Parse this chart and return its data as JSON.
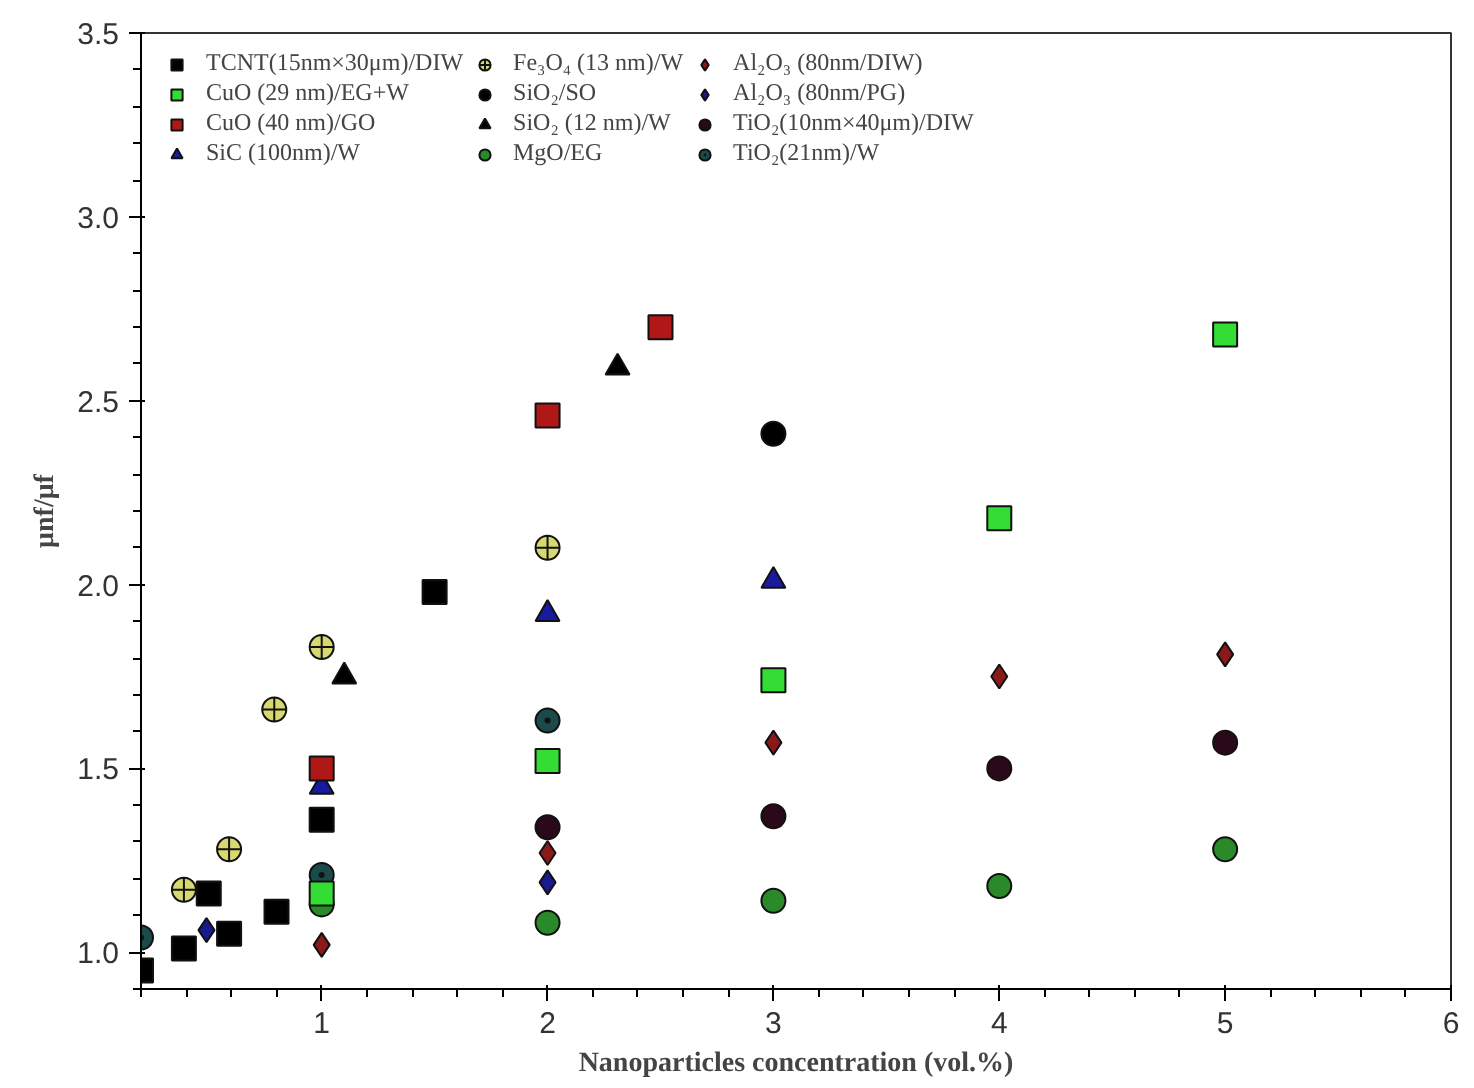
{
  "chart_data": {
    "type": "scatter",
    "xlabel": "Nanoparticles concentration (vol.%)",
    "ylabel": "μnf/μf",
    "xlim": [
      0.2,
      6
    ],
    "ylim": [
      0.9,
      3.5
    ],
    "xticks": [
      1,
      2,
      3,
      4,
      5,
      6
    ],
    "yticks": [
      {
        "value": 1,
        "label": "1.0"
      },
      {
        "value": 1.5,
        "label": "1.5"
      },
      {
        "value": 2,
        "label": "2.0"
      },
      {
        "value": 2.5,
        "label": "2.5"
      },
      {
        "value": 3,
        "label": "3.0"
      },
      {
        "value": 3.5,
        "label": "3.5"
      }
    ],
    "grid": false,
    "legend": "top left",
    "series": [
      {
        "name": "TCNT(15nm×30μm)/DIW",
        "color": "#000000",
        "marker": "square",
        "x": [
          0.2,
          0.39,
          0.5,
          0.59,
          0.8,
          1,
          1.5
        ],
        "values": [
          0.95,
          1.01,
          1.16,
          1.05,
          1.11,
          1.36,
          1.98
        ]
      },
      {
        "name": "CuO (29 nm)/EG+W",
        "color": "#33dd33",
        "marker": "square",
        "x": [
          1,
          2,
          3,
          4,
          5
        ],
        "values": [
          1.16,
          1.52,
          1.74,
          2.18,
          2.68
        ]
      },
      {
        "name": "CuO (40 nm)/GO",
        "color": "#b01818",
        "marker": "square",
        "x": [
          1,
          2,
          2.5
        ],
        "values": [
          1.5,
          2.46,
          2.7
        ]
      },
      {
        "name": "SiC (100nm)/W",
        "color": "#1a1aa0",
        "marker": "triangle",
        "x": [
          1,
          2,
          3
        ],
        "values": [
          1.45,
          1.92,
          2.01
        ]
      },
      {
        "name": "Fe₃O₄ (13 nm)/W",
        "color": "#d8d870",
        "marker": "circle_cross",
        "x": [
          0.39,
          0.59,
          0.79,
          1,
          2
        ],
        "values": [
          1.17,
          1.28,
          1.66,
          1.83,
          2.1
        ]
      },
      {
        "name": "SiO₂/SO",
        "color": "#000000",
        "marker": "circle",
        "x": [
          3
        ],
        "values": [
          2.41
        ]
      },
      {
        "name": "SiO₂ (12 nm)/W",
        "color": "#000000",
        "marker": "triangle",
        "x": [
          1.1,
          2.31
        ],
        "values": [
          1.75,
          2.59
        ]
      },
      {
        "name": "MgO/EG",
        "color": "#2a8a2a",
        "marker": "circle",
        "x": [
          1,
          2,
          3,
          4,
          5
        ],
        "values": [
          1.13,
          1.08,
          1.14,
          1.18,
          1.28
        ]
      },
      {
        "name": "Al₂O₃ (80nm/DIW)",
        "color": "#8a1a1a",
        "marker": "diamond",
        "x": [
          1,
          2,
          3,
          4,
          5
        ],
        "values": [
          1.02,
          1.27,
          1.57,
          1.75,
          1.81
        ]
      },
      {
        "name": "Al₂O₃ (80nm/PG)",
        "color": "#1a1a90",
        "marker": "diamond",
        "x": [
          0.49,
          2
        ],
        "values": [
          1.06,
          1.19
        ]
      },
      {
        "name": "TiO₂(10nm×40μm)/DIW",
        "color": "#2a0a1a",
        "marker": "circle",
        "x": [
          2,
          3,
          4,
          5
        ],
        "values": [
          1.34,
          1.37,
          1.5,
          1.57
        ]
      },
      {
        "name": "TiO₂(21nm)/W",
        "color": "#1a4a4a",
        "marker": "circle_dot",
        "x": [
          0.2,
          1,
          2
        ],
        "values": [
          1.04,
          1.21,
          1.63
        ]
      }
    ]
  }
}
